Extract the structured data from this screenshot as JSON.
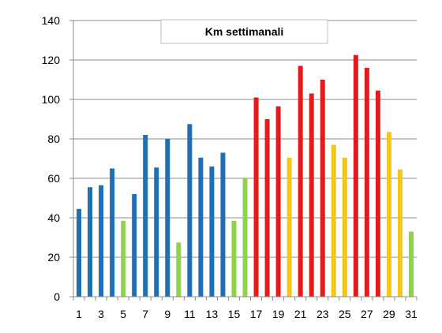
{
  "chart_data": {
    "type": "bar",
    "title": "Km settimanali",
    "xlabel": "",
    "ylabel": "",
    "ylim": [
      0,
      140
    ],
    "yticks": [
      0,
      20,
      40,
      60,
      80,
      100,
      120,
      140
    ],
    "grid": true,
    "legend": "none",
    "categories": [
      "1",
      "2",
      "3",
      "4",
      "5",
      "6",
      "7",
      "8",
      "9",
      "10",
      "11",
      "12",
      "13",
      "14",
      "15",
      "16",
      "17",
      "18",
      "19",
      "20",
      "21",
      "22",
      "23",
      "24",
      "25",
      "26",
      "27",
      "28",
      "29",
      "30",
      "31"
    ],
    "xtick_labels": [
      "1",
      "3",
      "5",
      "7",
      "9",
      "11",
      "13",
      "15",
      "17",
      "19",
      "21",
      "23",
      "25",
      "27",
      "29",
      "31"
    ],
    "values": [
      44.5,
      55.5,
      56.5,
      65,
      38.5,
      52,
      82,
      65.5,
      80,
      27.5,
      87.5,
      70.5,
      66,
      73,
      38.5,
      60,
      101,
      90,
      96.5,
      70.5,
      117,
      103,
      110,
      77,
      70.5,
      122.5,
      116,
      104.5,
      83.5,
      64.5,
      33
    ],
    "colors": [
      "#1f6fb5",
      "#1f6fb5",
      "#1f6fb5",
      "#1f6fb5",
      "#92d050",
      "#1f6fb5",
      "#1f6fb5",
      "#1f6fb5",
      "#1f6fb5",
      "#92d050",
      "#1f6fb5",
      "#1f6fb5",
      "#1f6fb5",
      "#1f6fb5",
      "#92d050",
      "#92d050",
      "#e41a1c",
      "#e41a1c",
      "#e41a1c",
      "#f5c518",
      "#e41a1c",
      "#e41a1c",
      "#e41a1c",
      "#f5c518",
      "#f5c518",
      "#e41a1c",
      "#e41a1c",
      "#e41a1c",
      "#f5c518",
      "#f5c518",
      "#92d050"
    ]
  }
}
